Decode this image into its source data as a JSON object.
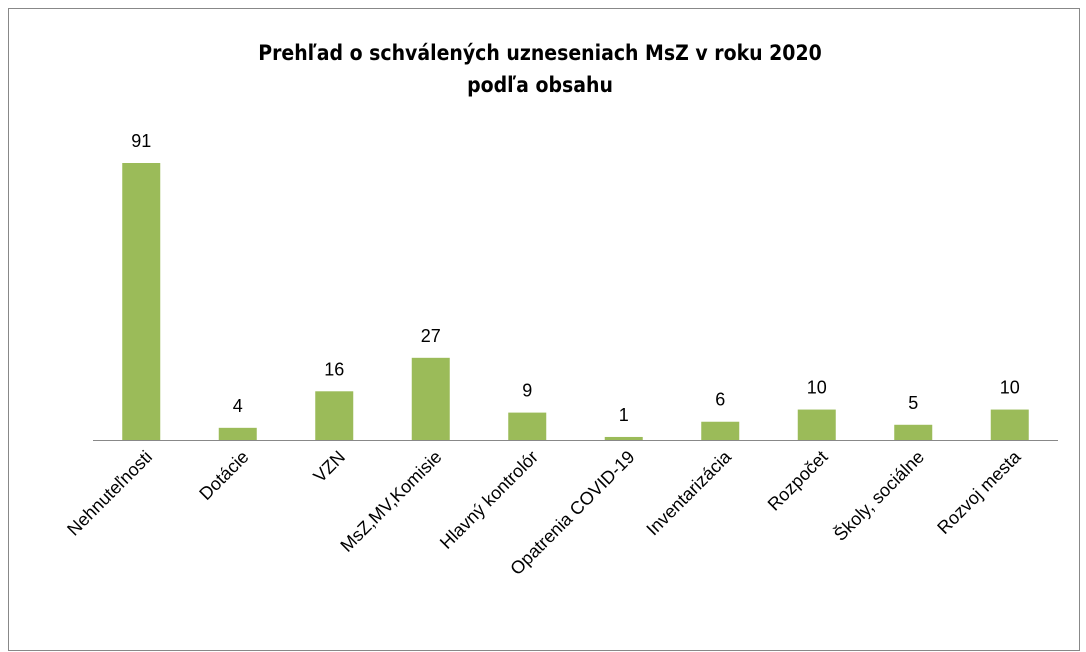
{
  "chart_data": {
    "type": "bar",
    "title": [
      "Prehľad o schválených uzneseniach MsZ  v roku 2020",
      "podľa obsahu"
    ],
    "categories": [
      "Nehnuteľnosti",
      "Dotácie",
      "VZN",
      "MsZ,MV,Komisie",
      "Hlavný kontrolór",
      "Opatrenia COVID-19",
      "Inventarizácia",
      "Rozpočet",
      "Školy, sociálne",
      "Rozvoj mesta"
    ],
    "values": [
      91,
      4,
      16,
      27,
      9,
      1,
      6,
      10,
      5,
      10
    ],
    "color": "#9bbb59"
  }
}
